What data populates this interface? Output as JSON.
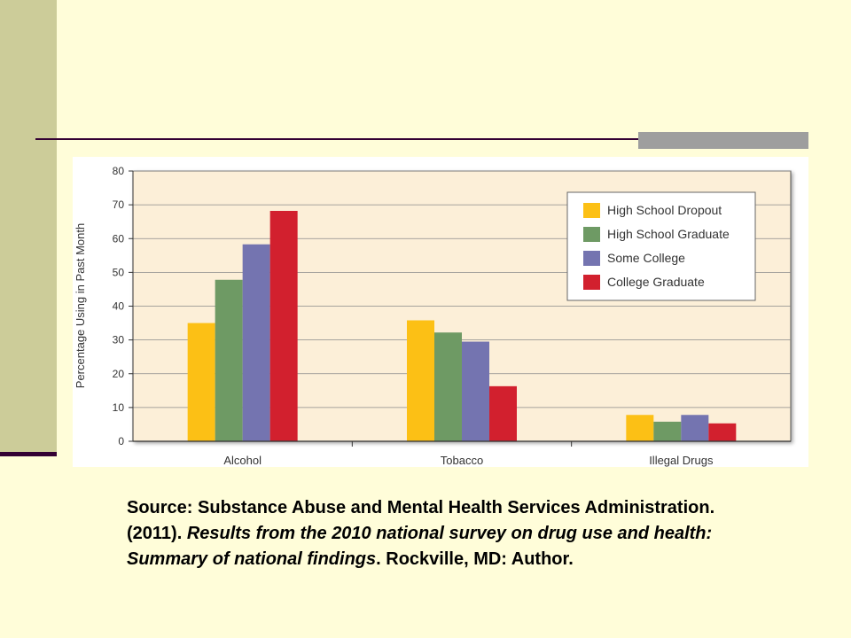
{
  "colors": {
    "background": "#FFFDD9",
    "sidebar": "#CCCC99",
    "rule": "#330033",
    "plot_background": "#FCEFD8",
    "series": [
      "#FCC015",
      "#6E9A64",
      "#7474B0",
      "#D2202E"
    ]
  },
  "chart_data": {
    "type": "bar",
    "title": "",
    "xlabel": "",
    "ylabel": "Percentage Using in Past Month",
    "ylim": [
      0,
      80
    ],
    "yticks": [
      0,
      10,
      20,
      30,
      40,
      50,
      60,
      70,
      80
    ],
    "grid": true,
    "legend_position": "top-right",
    "categories": [
      "Alcohol",
      "Tobacco",
      "Illegal Drugs"
    ],
    "series": [
      {
        "name": "High School Dropout",
        "values": [
          35,
          35.8,
          7.8
        ]
      },
      {
        "name": "High School Graduate",
        "values": [
          47.8,
          32.2,
          5.8
        ]
      },
      {
        "name": "Some College",
        "values": [
          58.3,
          29.5,
          7.8
        ]
      },
      {
        "name": "College Graduate",
        "values": [
          68.2,
          16.3,
          5.3
        ]
      }
    ]
  },
  "caption": {
    "part1": "Source: Substance Abuse and Mental Health Services Administration. (2011). ",
    "italic": "Results from the 2010 national survey on drug use and health: Summary of national findings",
    "part2": ". Rockville, MD: Author."
  }
}
